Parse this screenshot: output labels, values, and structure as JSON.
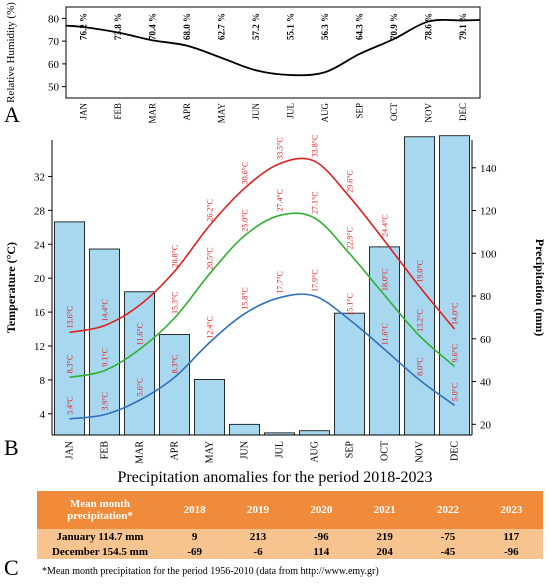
{
  "panel_labels": {
    "a": "A",
    "b": "B",
    "c": "C"
  },
  "chart_data": [
    {
      "type": "line",
      "title": "",
      "ylabel": "Relative Humidity (%)",
      "categories": [
        "JAN",
        "FEB",
        "MAR",
        "APR",
        "MAY",
        "JUN",
        "JUL",
        "AUG",
        "SEP",
        "OCT",
        "NOV",
        "DEC"
      ],
      "series": [
        {
          "name": "",
          "values": [
            76.2,
            73.8,
            70.4,
            68.0,
            62.7,
            57.2,
            55.1,
            56.3,
            64.3,
            70.9,
            78.6,
            79.1
          ]
        }
      ],
      "value_labels": [
        "76.2 %",
        "73.8 %",
        "70.4 %",
        "68.0 %",
        "62.7 %",
        "57.2 %",
        "55.1 %",
        "56.3 %",
        "64.3 %",
        "70.9 %",
        "78.6 %",
        "79.1 %"
      ],
      "yticks": [
        50,
        60,
        70,
        80
      ],
      "ylim": [
        45,
        85
      ],
      "color": "#000000"
    },
    {
      "type": "bar+line",
      "title": "",
      "ylabel_left": "Temperature (°C)",
      "ylabel_right": "Precipitation (mm)",
      "categories": [
        "JAN",
        "FEB",
        "MAR",
        "APR",
        "MAY",
        "JUN",
        "JUL",
        "AUG",
        "SEP",
        "OCT",
        "NOV",
        "DEC"
      ],
      "left_yticks": [
        4,
        8,
        12,
        16,
        20,
        24,
        28,
        32
      ],
      "left_ylim": [
        1.5,
        36.3
      ],
      "right_yticks": [
        20,
        40,
        60,
        80,
        100,
        120,
        140
      ],
      "right_ylim": [
        15,
        153
      ],
      "bars": {
        "name": "",
        "values": [
          114.7,
          102,
          82,
          62,
          41,
          20,
          16,
          17,
          72,
          103,
          154.5,
          155
        ],
        "color": "#a8d8f0"
      },
      "series": [
        {
          "name": "",
          "color": "#e02020",
          "values": [
            13.6,
            14.4,
            16.8,
            20.8,
            26.2,
            30.6,
            33.5,
            33.8,
            29.6,
            24.4,
            19.0,
            14.0
          ],
          "labels": [
            "13.6°C",
            "14.4°C",
            "",
            "20.8°C",
            "26.2°C",
            "30.6°C",
            "33.5°C",
            "33.8°C",
            "29.6°C",
            "24.4°C",
            "19.0°C",
            "14.0°C"
          ]
        },
        {
          "name": "",
          "color": "#30b030",
          "values": [
            8.3,
            9.1,
            11.6,
            15.3,
            20.5,
            25.0,
            27.4,
            27.1,
            22.9,
            18.0,
            13.2,
            9.6
          ],
          "labels": [
            "8.3°C",
            "9.1°C",
            "11.6°C",
            "15.3°C",
            "20.5°C",
            "25.0°C",
            "27.4°C",
            "27.1°C",
            "22.9°C",
            "18.0°C",
            "13.2°C",
            "9.6°C"
          ]
        },
        {
          "name": "",
          "color": "#3070c0",
          "values": [
            3.4,
            3.9,
            5.6,
            8.3,
            12.4,
            15.8,
            17.7,
            17.9,
            15.1,
            11.6,
            8.0,
            5.0
          ],
          "labels": [
            "3.4°C",
            "3.9°C",
            "5.6°C",
            "8.3°C",
            "12.4°C",
            "15.8°C",
            "17.7°C",
            "17.9°C",
            "15.1°C",
            "11.6°C",
            "8.0°C",
            "5.0°C"
          ]
        }
      ]
    },
    {
      "type": "table",
      "title": "Precipitation anomalies for the period 2018-2023",
      "header": [
        "Mean month precipitation*",
        "2018",
        "2019",
        "2020",
        "2021",
        "2022",
        "2023"
      ],
      "rows": [
        [
          "January 114.7 mm",
          "9",
          "213",
          "-96",
          "219",
          "-75",
          "117"
        ],
        [
          "December 154.5 mm",
          "-69",
          "-6",
          "114",
          "204",
          "-45",
          "-96"
        ]
      ],
      "footnote": "*Mean month precipitation for the period 1956-2010 (data from http://www.emy.gr)"
    }
  ]
}
